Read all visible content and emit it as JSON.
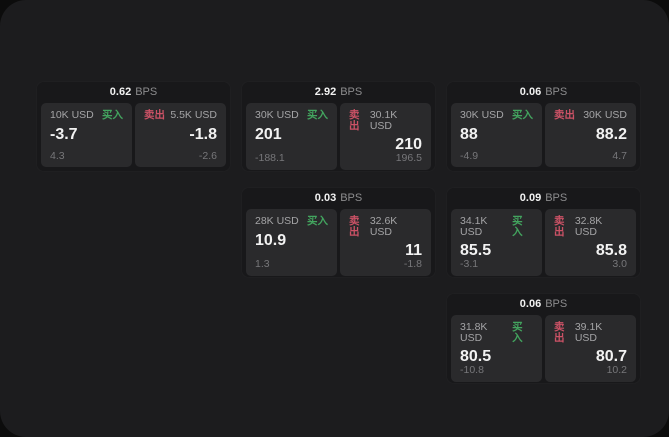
{
  "window": {
    "background": "#0c0c0c",
    "surface": "#1c1c1e"
  },
  "labels": {
    "buy": "买入",
    "sell": "卖出",
    "bps": "BPS"
  },
  "colors": {
    "buy": "#43a55f",
    "sell": "#cc5266",
    "price": "#f2f2f2",
    "muted": "#a4a4a6",
    "faint": "#77777a"
  },
  "cards": [
    {
      "col": 1,
      "row": 1,
      "bps": "0.62",
      "buy": {
        "size": "10K USD",
        "price": "-3.7",
        "change": "4.3"
      },
      "sell": {
        "size": "5.5K USD",
        "price": "-1.8",
        "change": "-2.6"
      }
    },
    {
      "col": 2,
      "row": 1,
      "bps": "2.92",
      "buy": {
        "size": "30K USD",
        "price": "201",
        "change": "-188.1"
      },
      "sell": {
        "size": "30.1K USD",
        "price": "210",
        "change": "196.5"
      }
    },
    {
      "col": 3,
      "row": 1,
      "bps": "0.06",
      "buy": {
        "size": "30K USD",
        "price": "88",
        "change": "-4.9"
      },
      "sell": {
        "size": "30K USD",
        "price": "88.2",
        "change": "4.7"
      }
    },
    {
      "col": 2,
      "row": 2,
      "bps": "0.03",
      "buy": {
        "size": "28K USD",
        "price": "10.9",
        "change": "1.3"
      },
      "sell": {
        "size": "32.6K USD",
        "price": "11",
        "change": "-1.8"
      }
    },
    {
      "col": 3,
      "row": 2,
      "bps": "0.09",
      "buy": {
        "size": "34.1K USD",
        "price": "85.5",
        "change": "-3.1"
      },
      "sell": {
        "size": "32.8K USD",
        "price": "85.8",
        "change": "3.0"
      }
    },
    {
      "col": 3,
      "row": 3,
      "bps": "0.06",
      "buy": {
        "size": "31.8K USD",
        "price": "80.5",
        "change": "-10.8"
      },
      "sell": {
        "size": "39.1K USD",
        "price": "80.7",
        "change": "10.2"
      }
    }
  ]
}
